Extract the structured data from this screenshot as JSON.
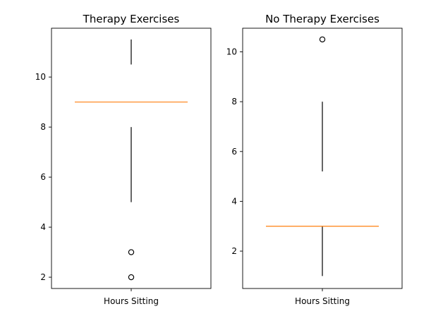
{
  "chart_data": [
    {
      "type": "box",
      "title": "Therapy Exercises",
      "categories": [
        "Hours Sitting"
      ],
      "ylim": [
        1.55,
        11.95
      ],
      "yticks": [
        2,
        4,
        6,
        8,
        10
      ],
      "grid": false,
      "box": {
        "whisker_low": 5,
        "q1": 9,
        "median": 9,
        "q3": 9,
        "whisker_high": 10.5,
        "cap_low": 8,
        "cap_high": 11.5
      },
      "fliers": [
        2,
        3
      ]
    },
    {
      "type": "box",
      "title": "No Therapy Exercises",
      "categories": [
        "Hours Sitting"
      ],
      "ylim": [
        0.5,
        10.95
      ],
      "yticks": [
        2,
        4,
        6,
        8,
        10
      ],
      "grid": false,
      "box": {
        "whisker_low": 1,
        "q1": 3,
        "median": 3,
        "q3": 3,
        "whisker_high": 8,
        "lower_whisker_top": 3,
        "upper_whisker_bottom": 5.2
      },
      "fliers": [
        10.5
      ]
    }
  ]
}
